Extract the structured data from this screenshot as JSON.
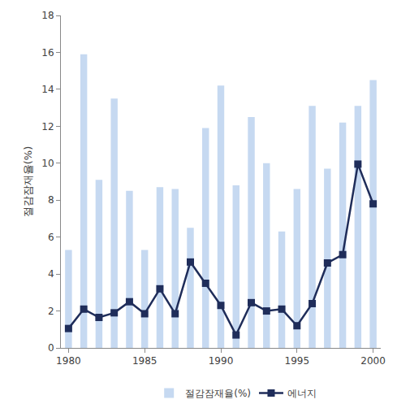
{
  "chart_data": {
    "type": "bar",
    "x": [
      1980,
      1981,
      1982,
      1983,
      1984,
      1985,
      1986,
      1987,
      1988,
      1989,
      1990,
      1991,
      1992,
      1993,
      1994,
      1995,
      1996,
      1997,
      1998,
      1999,
      2000
    ],
    "series": [
      {
        "name": "절감잠재율(%)",
        "type": "bar",
        "color": "#c6d9f1",
        "values": [
          5.3,
          15.9,
          9.1,
          13.5,
          8.5,
          5.3,
          8.7,
          8.6,
          6.5,
          11.9,
          14.2,
          8.8,
          12.5,
          10.0,
          6.3,
          8.6,
          13.1,
          9.7,
          12.2,
          13.1,
          14.5
        ]
      },
      {
        "name": "에너지",
        "type": "line",
        "color": "#1f2d5a",
        "marker": "square",
        "values": [
          1.05,
          2.1,
          1.65,
          1.9,
          2.5,
          1.85,
          3.2,
          1.85,
          4.65,
          3.5,
          2.3,
          0.7,
          2.45,
          2.0,
          2.1,
          1.2,
          2.4,
          4.6,
          5.05,
          9.95,
          7.8
        ]
      }
    ],
    "y_label": "절감잠재율(%)",
    "xlim": [
      1979.5,
      2000.5
    ],
    "xticks": [
      1980,
      1985,
      1990,
      1995,
      2000
    ],
    "ylim": [
      0,
      18
    ],
    "yticks": [
      0,
      2,
      4,
      6,
      8,
      10,
      12,
      14,
      16,
      18
    ],
    "grid": false,
    "legend": "bottom"
  }
}
